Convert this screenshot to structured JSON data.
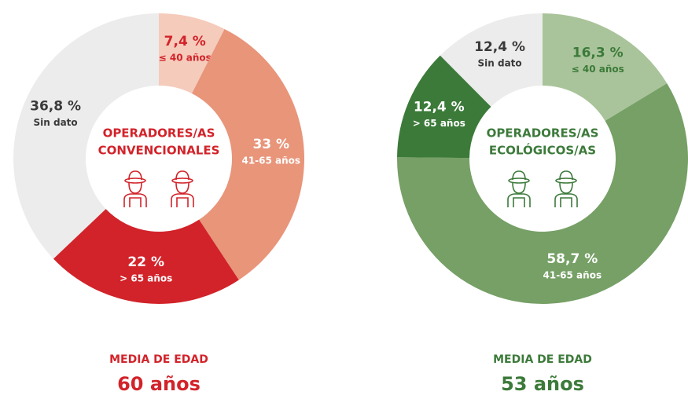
{
  "chart_data": [
    {
      "type": "donut",
      "center_title": [
        "OPERADORES/AS",
        "CONVENCIONALES"
      ],
      "categories": [
        "≤ 40 años",
        "41-65 años",
        "> 65 años",
        "Sin dato"
      ],
      "values": [
        7.4,
        33,
        22,
        36.8
      ],
      "value_labels": [
        "7,4 %",
        "33 %",
        "22 %",
        "36,8 %"
      ],
      "colors": [
        "#f5cbbb",
        "#e8957a",
        "#d2232a",
        "#ececec"
      ],
      "label_colors": [
        "#d2232a",
        "#ffffff",
        "#ffffff",
        "#3a3a3a"
      ],
      "accent": "#d2232a",
      "caption": "MEDIA DE EDAD",
      "average": "60 años"
    },
    {
      "type": "donut",
      "center_title": [
        "OPERADORES/AS",
        "ECOLÓGICOS/AS"
      ],
      "categories": [
        "≤ 40 años",
        "41-65 años",
        "> 65 años",
        "Sin dato"
      ],
      "values": [
        16.3,
        58.7,
        12.4,
        12.4
      ],
      "value_labels": [
        "16,3 %",
        "58,7 %",
        "12,4 %",
        "12,4 %"
      ],
      "colors": [
        "#a9c49a",
        "#76a066",
        "#3c7a3a",
        "#ececec"
      ],
      "label_colors": [
        "#3c7a3a",
        "#ffffff",
        "#ffffff",
        "#3a3a3a"
      ],
      "accent": "#3c7a3a",
      "caption": "MEDIA DE EDAD",
      "average": "53 años"
    }
  ]
}
